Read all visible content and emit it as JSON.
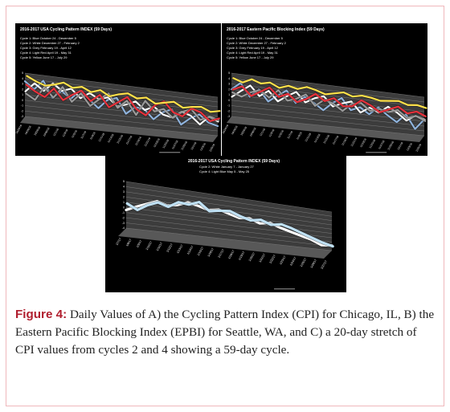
{
  "figure": {
    "label": "Figure 4:",
    "caption": "Daily Values of A) the Cycling Pattern Index (CPI) for Chicago, IL, B) the Eastern Pacific Blocking Index (EPBI) for Seattle, WA, and C) a 20-day stretch of CPI values from cycles 2 and 4 showing a 59-day cycle."
  },
  "colors": {
    "blue": "#8fb3dc",
    "white": "#ffffff",
    "grey": "#9a9a9a",
    "lightred": "#e8313b",
    "yellow": "#ffe14a",
    "lightblue": "#bfe0f3",
    "background": "#000000",
    "floor": "#585858",
    "wall": "#3c3c3c"
  },
  "chart_data": [
    {
      "type": "line",
      "title": "2016-2017 USA Cycling Pattern INDEX (59 Days)",
      "legend": [
        "Cycle 1:  Blue  October 24 - December 5",
        "Cycle 2:  White  December 27 - February 2",
        "Cycle 3:  Grey  February 19 - April 12",
        "Cycle 4:  Light Red  April 19 - May 31",
        "Cycle 5:  Yellow  June 17 - July 29"
      ],
      "ylim": [
        -3,
        5
      ],
      "yticks": [
        "5",
        "4",
        "3",
        "2",
        "1",
        "0",
        "-1",
        "-2",
        "-3"
      ],
      "xticks": [
        "10/24/16",
        "10/26/16",
        "10/28/16",
        "10/30/16",
        "11/1/16",
        "11/3/16",
        "11/5/16",
        "11/7/16",
        "11/9/16",
        "11/11/16",
        "11/13/16",
        "11/15/16",
        "11/17/16",
        "11/19/16",
        "11/21/16",
        "11/23/16",
        "11/25/16",
        "11/27/16",
        "11/29/16",
        "12/1/16",
        "12/3/16",
        "12/5/16"
      ],
      "series": [
        {
          "name": "Blue",
          "color": "#8fb3dc",
          "values": [
            3.5,
            2.2,
            4.0,
            1.0,
            2.5,
            1.2,
            3.0,
            1.5,
            0.0,
            1.8,
            2.4,
            -0.5,
            1.0,
            0.8,
            -1.0,
            0.6,
            1.4,
            -1.5,
            0.0,
            1.0,
            -0.5,
            -1.0
          ]
        },
        {
          "name": "White",
          "color": "#ffffff",
          "values": [
            1.5,
            3.2,
            2.0,
            3.6,
            2.4,
            3.0,
            1.4,
            2.6,
            1.6,
            2.2,
            0.6,
            1.2,
            2.0,
            0.5,
            1.4,
            0.0,
            -0.4,
            1.0,
            0.4,
            -1.2,
            0.6,
            -0.2
          ]
        },
        {
          "name": "Grey",
          "color": "#9a9a9a",
          "values": [
            1.0,
            0.0,
            2.6,
            0.8,
            3.0,
            0.4,
            2.2,
            0.0,
            1.5,
            2.8,
            0.2,
            1.8,
            -0.8,
            2.2,
            0.3,
            1.0,
            -0.6,
            0.8,
            1.6,
            -0.4,
            0.5,
            0.0
          ]
        },
        {
          "name": "Light Red",
          "color": "#e8313b",
          "values": [
            2.5,
            1.4,
            0.6,
            2.4,
            0.4,
            1.6,
            2.6,
            0.8,
            2.2,
            0.0,
            1.2,
            2.4,
            0.2,
            -0.8,
            1.4,
            2.4,
            0.4,
            -0.2,
            1.6,
            1.0,
            -0.6,
            0.2
          ]
        },
        {
          "name": "Yellow",
          "color": "#ffe14a",
          "values": [
            4.0,
            3.2,
            2.6,
            3.0,
            3.6,
            2.8,
            3.2,
            2.4,
            3.0,
            2.0,
            2.6,
            3.0,
            2.2,
            2.6,
            1.6,
            2.0,
            2.4,
            1.4,
            1.8,
            2.0,
            1.2,
            1.6
          ]
        }
      ]
    },
    {
      "type": "line",
      "title": "2016-2017 Eastern Pacific Blocking Index (59 Days)",
      "legend": [
        "Cycle 1:  Blue  October 24 - December 5",
        "Cycle 2:  White  December 27 - February 2",
        "Cycle 3:  Grey  February 19 - April 12",
        "Cycle 4:  Light Red  April 19 - May 31",
        "Cycle 5:  Yellow  June 17 - July 29"
      ],
      "ylim": [
        -3,
        5
      ],
      "yticks": [
        "5",
        "4",
        "3",
        "2",
        "1",
        "0",
        "-1",
        "-2",
        "-3"
      ],
      "xticks": [
        "10/24/16",
        "10/26/16",
        "10/28/16",
        "10/30/16",
        "11/1/16",
        "11/3/16",
        "11/5/16",
        "11/7/16",
        "11/9/16",
        "11/11/16",
        "11/13/16",
        "11/15/16",
        "11/17/16",
        "11/19/16",
        "11/21/16",
        "11/23/16",
        "11/25/16",
        "11/27/16",
        "11/29/16",
        "12/1/16",
        "12/3/16",
        "12/5/16"
      ],
      "series": [
        {
          "name": "Blue",
          "color": "#8fb3dc",
          "values": [
            2.0,
            3.4,
            1.0,
            2.6,
            0.5,
            1.8,
            3.0,
            0.8,
            2.2,
            1.2,
            0.0,
            1.6,
            2.8,
            0.6,
            1.4,
            0.2,
            1.8,
            0.4,
            -0.8,
            1.0,
            -1.8,
            0.4
          ]
        },
        {
          "name": "White",
          "color": "#ffffff",
          "values": [
            0.5,
            1.8,
            3.0,
            1.2,
            2.4,
            0.6,
            1.8,
            2.8,
            1.0,
            2.0,
            2.6,
            0.8,
            1.6,
            2.2,
            0.2,
            1.4,
            0.6,
            2.0,
            1.0,
            -0.4,
            0.8,
            0.2
          ]
        },
        {
          "name": "Grey",
          "color": "#9a9a9a",
          "values": [
            1.2,
            0.6,
            1.6,
            2.2,
            1.0,
            2.6,
            0.8,
            1.4,
            2.4,
            0.4,
            1.8,
            1.2,
            0.0,
            1.6,
            2.0,
            0.6,
            1.2,
            0.8,
            1.4,
            0.0,
            0.6,
            -0.2
          ]
        },
        {
          "name": "Light Red",
          "color": "#e8313b",
          "values": [
            1.6,
            2.4,
            0.8,
            1.8,
            2.8,
            1.2,
            2.0,
            0.6,
            1.4,
            2.6,
            1.4,
            2.2,
            0.8,
            1.0,
            2.4,
            1.6,
            0.4,
            1.2,
            2.0,
            0.8,
            1.4,
            0.6
          ]
        },
        {
          "name": "Yellow",
          "color": "#ffe14a",
          "values": [
            3.6,
            3.0,
            3.8,
            3.2,
            3.6,
            2.8,
            3.4,
            3.0,
            3.6,
            3.2,
            2.6,
            3.0,
            3.4,
            2.8,
            3.2,
            3.0,
            2.6,
            2.8,
            3.0,
            2.4,
            2.6,
            2.2
          ]
        }
      ]
    },
    {
      "type": "line",
      "title": "2016-2017 USA Cycling Pattern INDEX (59 Days)",
      "legend": [
        "Cycle 2: White January 7 - January 27",
        "Cycle 4: Light Blue  May 5 - May 25"
      ],
      "ylim": [
        -4,
        5
      ],
      "yticks": [
        "5",
        "4",
        "3",
        "2",
        "1",
        "0",
        "-1",
        "-2",
        "-3",
        "-4"
      ],
      "xticks": [
        "1/7/17",
        "1/8/17",
        "1/9/17",
        "1/10/17",
        "1/11/17",
        "1/12/17",
        "1/13/17",
        "1/14/17",
        "1/15/17",
        "1/16/17",
        "1/17/17",
        "1/18/17",
        "1/19/17",
        "1/20/17",
        "1/21/17",
        "1/22/17",
        "1/23/17",
        "1/24/17",
        "1/25/17",
        "1/26/17",
        "1/27/17"
      ],
      "series": [
        {
          "name": "White",
          "color": "#ffffff",
          "values": [
            -0.5,
            0.4,
            1.2,
            2.0,
            1.4,
            1.8,
            2.6,
            2.2,
            1.6,
            2.0,
            1.4,
            0.8,
            1.0,
            0.2,
            0.6,
            -0.2,
            -0.8,
            -1.4,
            -2.0,
            -3.0,
            -2.8
          ]
        },
        {
          "name": "Light Blue",
          "color": "#bfe0f3",
          "values": [
            0.6,
            -0.4,
            0.8,
            1.6,
            1.0,
            2.2,
            2.0,
            2.8,
            1.2,
            1.6,
            1.8,
            1.0,
            0.4,
            0.8,
            0.0,
            0.4,
            -0.2,
            -1.0,
            -1.8,
            -2.6,
            -3.2
          ]
        }
      ]
    }
  ]
}
